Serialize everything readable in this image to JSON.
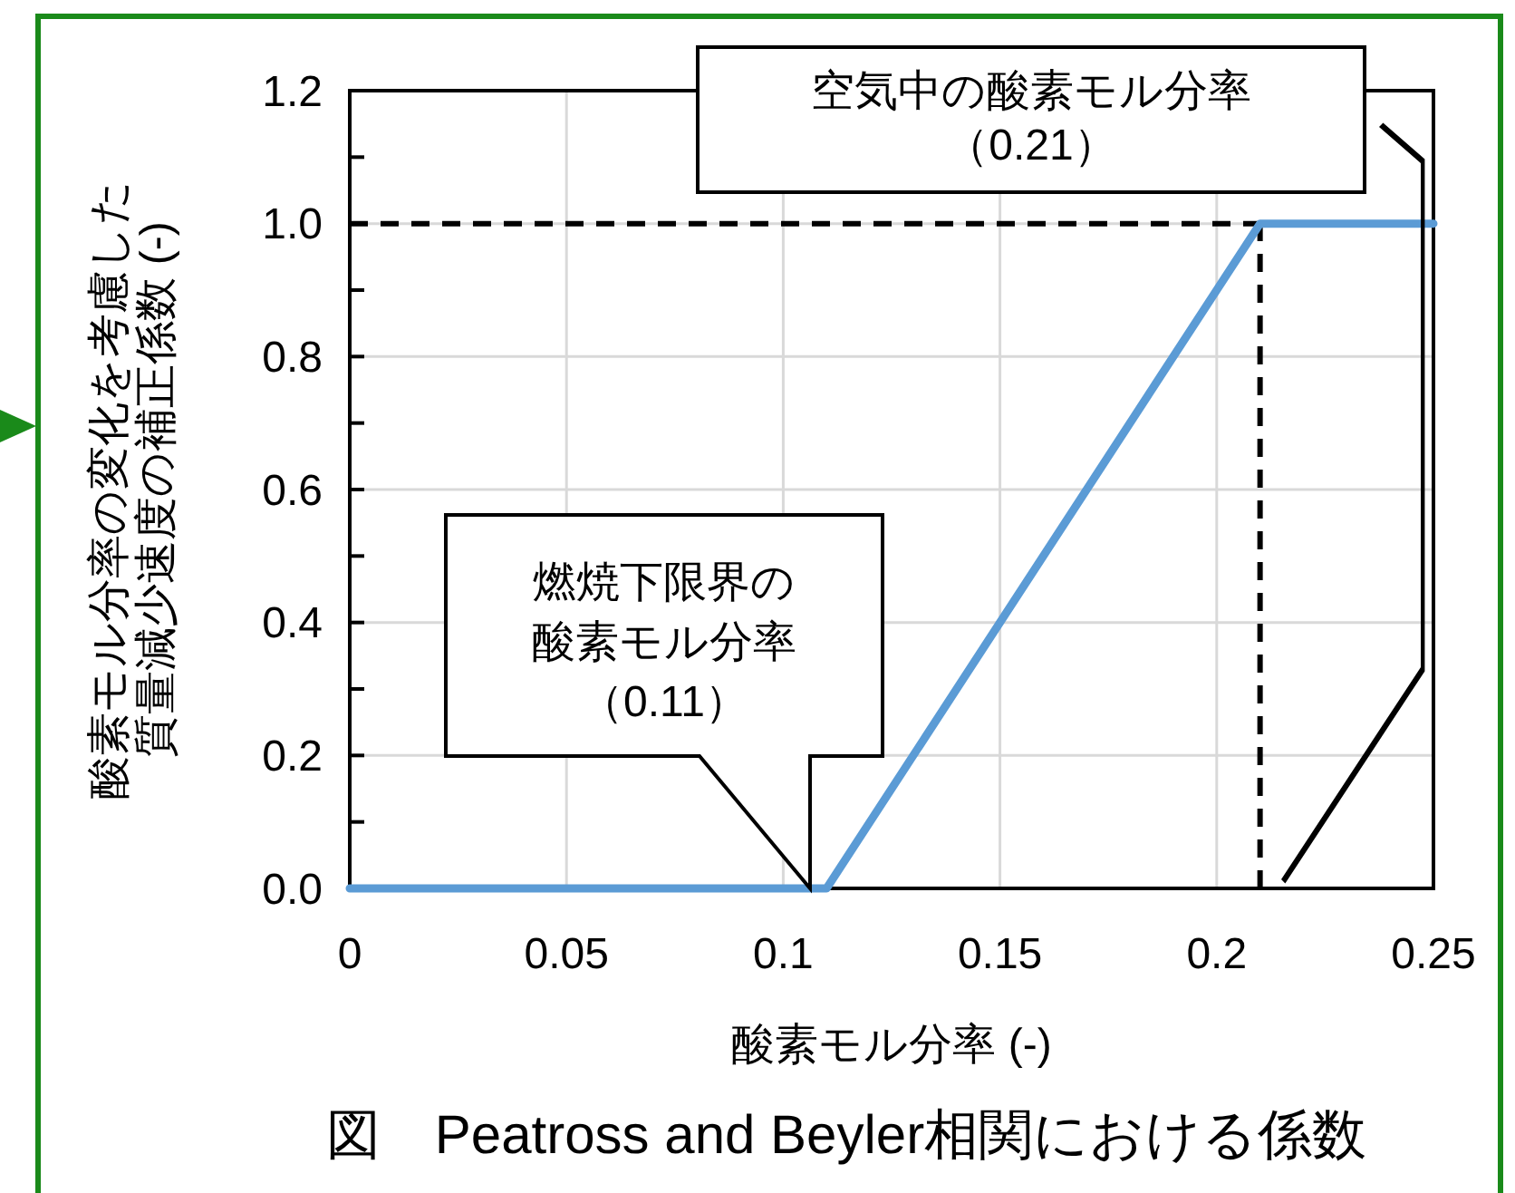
{
  "chart_data": {
    "type": "line",
    "title": "図　Peatross and Beyler相関における係数",
    "xlabel": "酸素モル分率 (-)",
    "ylabel": "酸素モル分率の変化を考慮した質量減少速度の補正係数 (-)",
    "series": [
      {
        "color": "#5b9bd5",
        "x": [
          0,
          0.11,
          0.21,
          0.25
        ],
        "values": [
          0,
          0,
          1,
          1
        ]
      }
    ],
    "xlim": [
      0,
      0.25
    ],
    "xticks": [
      0,
      0.05,
      0.1,
      0.15,
      0.2,
      0.25
    ],
    "ylim": [
      0,
      1.2
    ],
    "yticks": [
      {
        "value": 0,
        "label": "0.0"
      },
      {
        "value": 0.1,
        "label": null
      },
      0.2,
      {
        "value": 0.3,
        "label": null
      },
      0.4,
      {
        "value": 0.5,
        "label": null
      },
      0.6,
      {
        "value": 0.7,
        "label": null
      },
      0.8,
      {
        "value": 0.9,
        "label": null
      },
      {
        "value": 1,
        "label": "1.0"
      },
      {
        "value": 1.1,
        "label": null
      },
      1.2
    ],
    "grid": true,
    "marker": "none",
    "line_style": "solid",
    "ref_lines": [
      {
        "axis": "y",
        "value": 1,
        "color": "#000000",
        "line_style": "dashed"
      },
      {
        "axis": "x",
        "value": 0.21,
        "color": "#000000",
        "line_style": "dashed"
      }
    ],
    "annotations": [
      "燃焼下限界の酸素モル分率（0.11）",
      "空気中の酸素モル分率（0.21）"
    ]
  }
}
